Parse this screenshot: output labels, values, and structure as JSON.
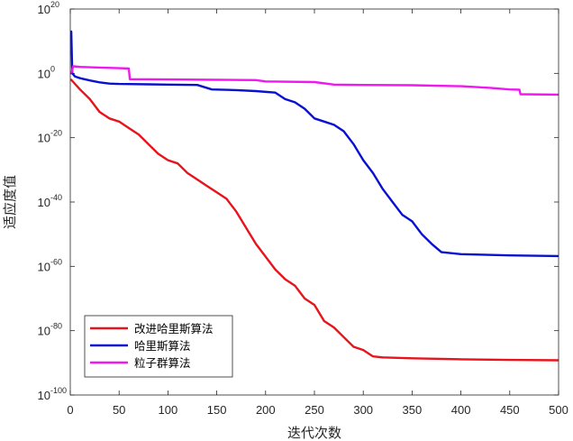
{
  "chart_data": {
    "type": "line",
    "title": "",
    "xlabel": "迭代次数",
    "ylabel": "适应度值",
    "xlim": [
      0,
      500
    ],
    "ylim_log10": [
      -100,
      20
    ],
    "yscale": "log",
    "x_ticks": [
      "0",
      "50",
      "100",
      "150",
      "200",
      "250",
      "300",
      "350",
      "400",
      "450",
      "500"
    ],
    "y_ticks": [
      {
        "base": "10",
        "exp": "20"
      },
      {
        "base": "10",
        "exp": "0"
      },
      {
        "base": "10",
        "exp": "-20"
      },
      {
        "base": "10",
        "exp": "-40"
      },
      {
        "base": "10",
        "exp": "-60"
      },
      {
        "base": "10",
        "exp": "-80"
      },
      {
        "base": "10",
        "exp": "-100"
      }
    ],
    "grid": false,
    "legend_position": "bottom-left",
    "series": [
      {
        "name": "改进哈里斯算法",
        "color": "#e8141c",
        "x": [
          1,
          10,
          20,
          30,
          40,
          50,
          60,
          70,
          80,
          90,
          100,
          110,
          120,
          130,
          140,
          150,
          160,
          170,
          180,
          190,
          200,
          210,
          220,
          230,
          240,
          250,
          260,
          270,
          280,
          290,
          300,
          310,
          320,
          350,
          400,
          450,
          500
        ],
        "log10": [
          -2,
          -5,
          -8,
          -12,
          -14,
          -15,
          -17,
          -19,
          -22,
          -25,
          -27,
          -28,
          -31,
          -33,
          -35,
          -37,
          -39,
          -43,
          -48,
          -53,
          -57,
          -61,
          -64,
          -66,
          -70,
          -72,
          -77,
          -79,
          -82,
          -85,
          -86,
          -88,
          -88.3,
          -88.6,
          -88.9,
          -89.1,
          -89.2
        ]
      },
      {
        "name": "哈里斯算法",
        "color": "#0a10d0",
        "x": [
          1,
          2,
          5,
          10,
          20,
          30,
          40,
          50,
          80,
          100,
          130,
          145,
          170,
          190,
          210,
          220,
          230,
          240,
          250,
          260,
          270,
          280,
          290,
          300,
          310,
          320,
          330,
          340,
          350,
          360,
          370,
          380,
          400,
          450,
          500
        ],
        "log10": [
          13,
          0,
          -1,
          -1.5,
          -2.2,
          -2.8,
          -3.2,
          -3.3,
          -3.4,
          -3.5,
          -3.6,
          -5,
          -5.2,
          -5.5,
          -6,
          -8,
          -9,
          -11,
          -14,
          -15,
          -16,
          -18,
          -22,
          -27,
          -31,
          -36,
          -40,
          -44,
          -46,
          -50,
          -53,
          -55.6,
          -56.2,
          -56.6,
          -56.8
        ]
      },
      {
        "name": "粒子群算法",
        "color": "#f018f0",
        "x": [
          1,
          3,
          10,
          30,
          50,
          60,
          61,
          100,
          150,
          190,
          200,
          250,
          270,
          300,
          350,
          400,
          430,
          450,
          460,
          461,
          500
        ],
        "log10": [
          0,
          2.2,
          2.0,
          1.8,
          1.6,
          1.5,
          -1.8,
          -1.9,
          -2.0,
          -2.1,
          -2.5,
          -2.7,
          -3.5,
          -3.6,
          -3.7,
          -4.0,
          -4.5,
          -5.0,
          -5.1,
          -6.5,
          -6.6
        ]
      }
    ]
  }
}
